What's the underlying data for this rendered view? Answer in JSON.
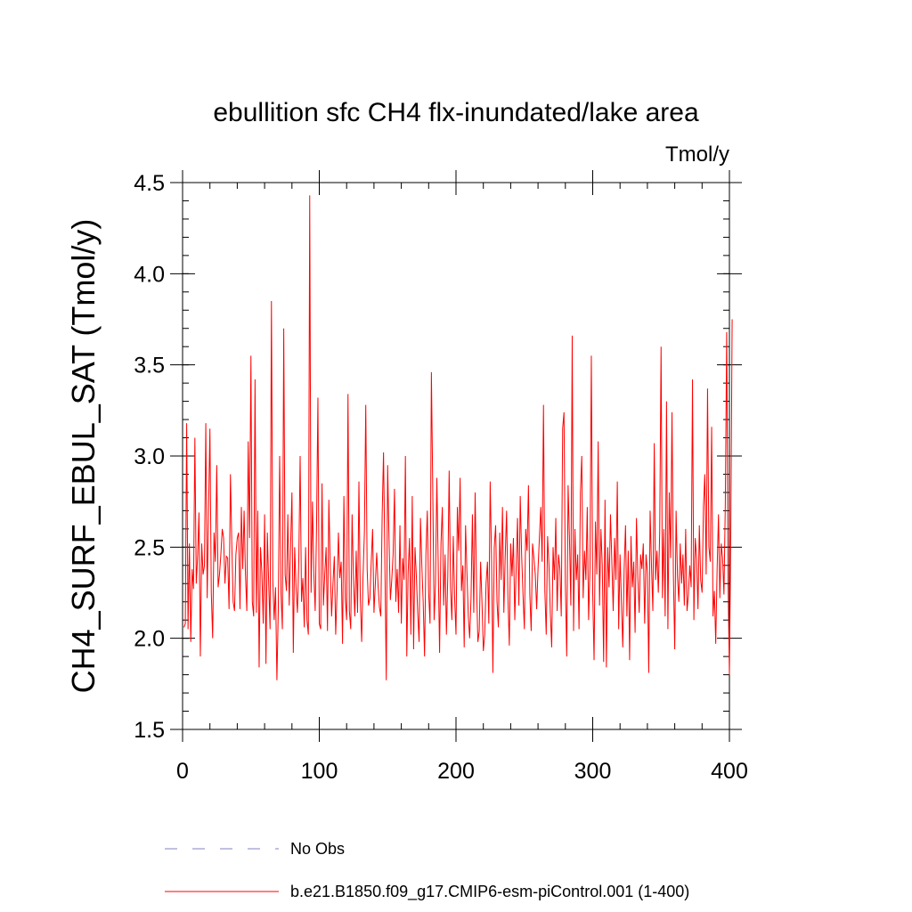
{
  "chart_data": {
    "type": "line",
    "title": "ebullition sfc CH4 flx-inundated/lake area",
    "units_label": "Tmol/y",
    "xlabel": "",
    "ylabel": "CH4_SURF_EBUL_SAT  (Tmol/y)",
    "xlim": [
      0,
      400
    ],
    "ylim": [
      1.5,
      4.5
    ],
    "x_ticks": [
      0,
      100,
      200,
      300,
      400
    ],
    "x_tick_labels": [
      "0",
      "100",
      "200",
      "300",
      "400"
    ],
    "y_ticks": [
      1.5,
      2.0,
      2.5,
      3.0,
      3.5,
      4.0,
      4.5
    ],
    "y_tick_labels": [
      "1.5",
      "2.0",
      "2.5",
      "3.0",
      "3.5",
      "4.0",
      "4.5"
    ],
    "legend_position": "bottom",
    "series": [
      {
        "name": "No Obs",
        "color": "#8080c0",
        "style": "dashed",
        "values": []
      },
      {
        "name": "b.e21.B1850.f09_g17.CMIP6-esm-piControl.001 (1-400)",
        "color": "#ff0000",
        "style": "solid",
        "x_start": 1,
        "values": [
          2.06,
          2.08,
          3.18,
          2.05,
          2.52,
          1.98,
          2.38,
          2.27,
          3.1,
          2.3,
          2.45,
          2.69,
          1.9,
          2.52,
          2.35,
          2.4,
          3.18,
          2.22,
          2.7,
          3.15,
          2.25,
          2.0,
          2.58,
          2.42,
          2.95,
          2.28,
          2.35,
          2.46,
          2.6,
          2.55,
          2.3,
          2.45,
          2.44,
          2.16,
          2.9,
          2.52,
          2.2,
          2.15,
          2.46,
          2.55,
          2.58,
          2.16,
          2.72,
          2.38,
          2.7,
          2.35,
          2.15,
          3.08,
          2.55,
          3.55,
          2.2,
          2.12,
          3.42,
          2.14,
          2.7,
          1.84,
          2.5,
          2.36,
          2.08,
          2.68,
          1.86,
          2.58,
          2.3,
          2.05,
          3.85,
          2.32,
          2.1,
          2.28,
          1.77,
          2.15,
          3.0,
          2.25,
          2.05,
          3.7,
          2.35,
          2.26,
          2.68,
          2.18,
          2.5,
          2.8,
          1.92,
          2.5,
          2.28,
          2.14,
          2.42,
          3.0,
          2.2,
          2.33,
          2.06,
          2.5,
          2.1,
          2.02,
          4.43,
          2.25,
          2.75,
          2.36,
          2.15,
          2.62,
          3.32,
          2.08,
          2.05,
          2.85,
          2.18,
          2.35,
          2.5,
          2.04,
          2.76,
          2.4,
          2.12,
          2.3,
          2.45,
          2.02,
          2.26,
          2.58,
          2.33,
          2.42,
          1.97,
          2.78,
          2.22,
          2.1,
          3.34,
          2.15,
          2.05,
          2.68,
          2.32,
          2.12,
          2.48,
          2.14,
          2.86,
          2.22,
          1.98,
          2.34,
          2.58,
          3.28,
          2.38,
          2.18,
          2.22,
          2.42,
          2.6,
          2.14,
          2.3,
          2.47,
          2.29,
          2.17,
          2.12,
          2.68,
          3.02,
          2.4,
          1.77,
          2.95,
          2.55,
          2.21,
          2.32,
          2.46,
          2.82,
          2.2,
          2.38,
          2.14,
          2.62,
          2.08,
          2.44,
          2.32,
          3.0,
          1.9,
          2.36,
          2.55,
          2.02,
          2.78,
          1.94,
          2.5,
          2.34,
          2.14,
          1.98,
          2.66,
          2.4,
          2.2,
          1.9,
          2.46,
          2.7,
          2.25,
          2.08,
          3.46,
          2.82,
          2.1,
          2.3,
          2.88,
          2.4,
          1.92,
          2.52,
          2.72,
          2.18,
          2.46,
          2.02,
          2.34,
          2.92,
          2.28,
          2.1,
          2.56,
          2.22,
          2.02,
          2.72,
          2.48,
          2.88,
          2.26,
          2.4,
          1.95,
          2.62,
          2.36,
          2.12,
          2.0,
          2.22,
          2.68,
          2.14,
          2.8,
          2.3,
          1.98,
          2.04,
          2.42,
          2.2,
          1.93,
          2.02,
          2.3,
          2.42,
          2.08,
          2.86,
          2.44,
          1.81,
          2.5,
          2.62,
          2.2,
          2.06,
          2.58,
          2.32,
          2.72,
          2.14,
          2.45,
          2.7,
          2.22,
          1.96,
          2.52,
          2.34,
          2.55,
          2.1,
          2.38,
          2.66,
          2.18,
          2.78,
          2.46,
          2.24,
          2.05,
          2.6,
          2.48,
          2.84,
          2.24,
          2.04,
          2.52,
          2.44,
          2.35,
          2.16,
          2.38,
          2.55,
          2.72,
          2.42,
          3.28,
          2.26,
          2.02,
          2.56,
          2.4,
          2.14,
          1.95,
          2.5,
          2.32,
          2.66,
          2.15,
          2.46,
          2.38,
          2.12,
          3.15,
          3.24,
          2.3,
          1.9,
          2.84,
          2.55,
          2.18,
          3.66,
          2.04,
          2.6,
          2.32,
          2.46,
          2.05,
          2.8,
          3.0,
          2.22,
          2.48,
          2.32,
          2.72,
          2.1,
          2.38,
          3.55,
          2.25,
          1.88,
          2.64,
          2.35,
          3.08,
          2.18,
          2.6,
          2.4,
          1.87,
          2.76,
          1.84,
          2.5,
          2.28,
          2.68,
          2.42,
          2.15,
          2.55,
          2.32,
          2.86,
          2.05,
          2.46,
          2.2,
          1.95,
          2.38,
          2.62,
          2.12,
          2.48,
          1.88,
          2.56,
          2.28,
          2.42,
          2.03,
          2.66,
          2.34,
          2.14,
          2.46,
          2.38,
          2.52,
          2.08,
          2.46,
          2.36,
          1.81,
          2.7,
          2.4,
          2.15,
          3.07,
          2.32,
          2.48,
          2.25,
          2.58,
          3.6,
          2.22,
          2.6,
          2.12,
          3.3,
          2.05,
          2.8,
          2.44,
          3.24,
          2.36,
          1.94,
          2.7,
          2.34,
          2.2,
          2.52,
          2.3,
          2.46,
          2.18,
          2.6,
          2.15,
          2.24,
          2.4,
          2.28,
          3.42,
          2.1,
          2.55,
          2.44,
          2.16,
          2.62,
          2.32,
          2.25,
          2.72,
          2.9,
          2.35,
          3.37,
          2.5,
          2.42,
          3.16,
          2.12,
          2.26,
          1.97,
          2.38,
          2.68,
          2.22,
          2.52,
          2.44,
          2.24,
          2.74,
          3.68,
          2.31,
          1.8,
          2.58,
          3.75
        ]
      }
    ]
  }
}
